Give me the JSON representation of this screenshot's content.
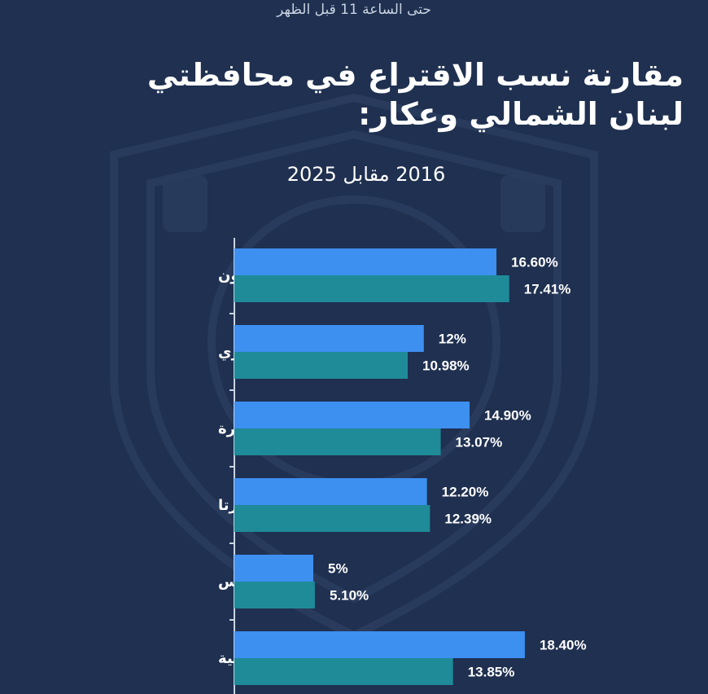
{
  "header": {
    "note": "حتى الساعة 11 قبل الظهر",
    "title": "مقارنة نسب الاقتراع في محافظتي لبنان الشمالي وعكار:",
    "subtitle": "2016 مقابل 2025"
  },
  "colors": {
    "background": "#1f3050",
    "series_2016": "#3d8ff0",
    "series_2025": "#1f8a98",
    "axis": "#c9d3e2"
  },
  "chart_data": {
    "type": "bar",
    "orientation": "horizontal",
    "title": "مقارنة نسب الاقتراع في محافظتي لبنان الشمالي وعكار:",
    "subtitle": "2016 مقابل 2025",
    "categories": [
      "البترون",
      "بشري",
      "الكورة",
      "زغرتا",
      "طرابلس",
      "المنية—الضنية"
    ],
    "series": [
      {
        "values": [
          16.6,
          12,
          14.9,
          12.2,
          5,
          18.4
        ],
        "labels": [
          "16.60%",
          "12%",
          "14.90%",
          "12.20%",
          "5%",
          "18.40%"
        ],
        "color": "#3d8ff0"
      },
      {
        "values": [
          17.41,
          10.98,
          13.07,
          12.39,
          5.1,
          13.85
        ],
        "labels": [
          "17.41%",
          "10.98%",
          "13.07%",
          "12.39%",
          "5.10%",
          "13.85%"
        ],
        "color": "#1f8a98"
      }
    ],
    "xlim": [
      0,
      20
    ],
    "unit": "%"
  }
}
